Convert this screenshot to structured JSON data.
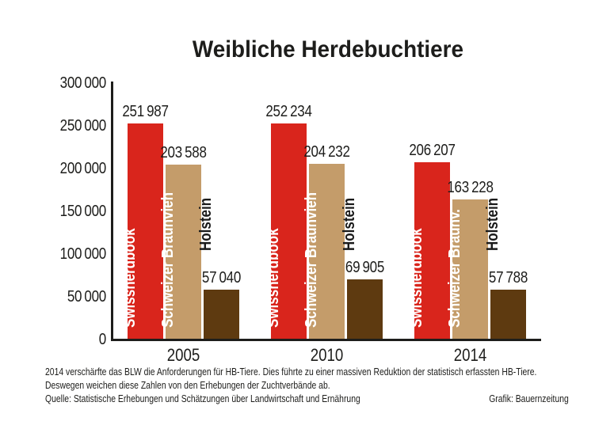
{
  "title": "Weibliche Herdebuchtiere",
  "chart_data": {
    "type": "bar",
    "title": "Weibliche Herdebuchtiere",
    "categories": [
      "2005",
      "2010",
      "2014"
    ],
    "series": [
      {
        "name": "Swissherdbook",
        "color": "#d9251c",
        "label_color": "#ffffff",
        "label_position": "inside",
        "values": [
          251987,
          252234,
          206207
        ],
        "bar_labels": [
          "Swissherdbook",
          "Swissherdbook",
          "Swissherdbook"
        ]
      },
      {
        "name": "Schweizer Braunvieh",
        "color": "#c49c6a",
        "label_color": "#ffffff",
        "label_position": "inside",
        "values": [
          203588,
          204232,
          163228
        ],
        "bar_labels": [
          "Schweizer Braunvieh",
          "Schweizer Braunvieh",
          "Schweizer Braunv."
        ]
      },
      {
        "name": "Holstein",
        "color": "#5e3a10",
        "label_color": "#1a1a1a",
        "label_position": "above",
        "values": [
          57040,
          69905,
          57788
        ],
        "bar_labels": [
          "Holstein",
          "Holstein",
          "Holstein"
        ]
      }
    ],
    "ylim": [
      0,
      300000
    ],
    "ytick_step": 50000,
    "grid": false,
    "legend": "labels-inside-bars",
    "value_labels": true,
    "axis_color": "#1d1d1b"
  },
  "footer": {
    "note_line1": "2014 verschärfte das BLW die Anforderungen für HB-Tiere. Dies führte zu einer massiven Reduktion der statistisch erfassten HB-Tiere.",
    "note_line2": "Deswegen weichen diese Zahlen von den Erhebungen der Zuchtverbände ab.",
    "source": "Quelle: Statistische Erhebungen und Schätzungen über Landwirtschaft und Ernährung",
    "credit": "Grafik: Bauernzeitung"
  }
}
